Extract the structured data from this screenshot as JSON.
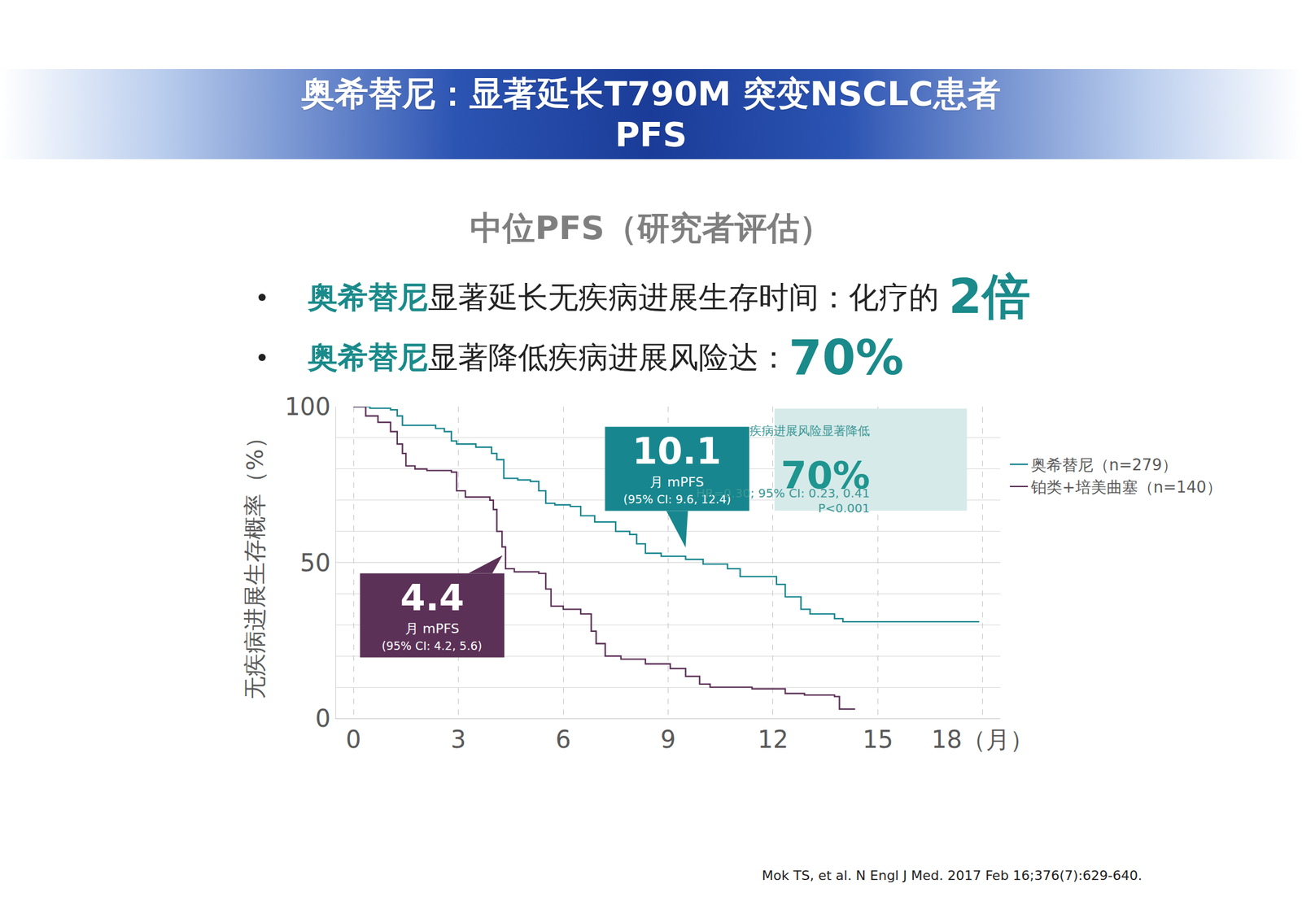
{
  "header": {
    "title": "奥希替尼：显著延长T790M 突变NSCLC患者PFS"
  },
  "subtitle": "中位PFS（研究者评估）",
  "bullets": [
    {
      "highlight": "奥希替尼",
      "text": "显著延长无疾病进展生存时间：化疗的 ",
      "emphasis": "2倍"
    },
    {
      "highlight": "奥希替尼",
      "text": "显著降低疾病进展风险达：",
      "emphasis": "70%"
    }
  ],
  "chart_data": {
    "type": "line",
    "line_style": "step",
    "y_label": "无疾病进展生存概率（%）",
    "xlim": [
      -0.5,
      18.5
    ],
    "xticks": [
      0,
      3,
      6,
      9,
      12,
      15,
      {
        "value": 18,
        "label": "18（月）"
      }
    ],
    "ylim": [
      0,
      100
    ],
    "yticks": [
      0,
      50,
      100
    ],
    "grid": true,
    "legend": "right",
    "series": [
      {
        "name": "奥希替尼（n=279）",
        "color": "#17868e",
        "x": [
          0,
          0.47,
          1.06,
          1.25,
          1.4,
          2.35,
          2.6,
          2.8,
          2.95,
          3.5,
          3.95,
          4.1,
          4.3,
          4.7,
          5.06,
          5.3,
          5.5,
          5.76,
          6.2,
          6.5,
          6.9,
          7.5,
          7.9,
          8.1,
          8.35,
          8.8,
          9.5,
          10.0,
          10.7,
          11.06,
          12.1,
          12.35,
          12.8,
          13.06,
          13.76,
          14.0,
          17.9
        ],
        "values": [
          100,
          99.5,
          99,
          97,
          94,
          93,
          92,
          89,
          88,
          87,
          85,
          83,
          77,
          76.5,
          76,
          73,
          69,
          68.5,
          68,
          65,
          63,
          60,
          59,
          56,
          53,
          52,
          51,
          49.5,
          48,
          45.5,
          43,
          39,
          35,
          33.5,
          32,
          31,
          31
        ],
        "median": 10.1,
        "median_label": "月 mPFS",
        "median_ci": "(95% CI: 9.6, 12.4)"
      },
      {
        "name": "铂类+培美曲塞（n=140）",
        "color": "#5c3157",
        "x": [
          0,
          0.35,
          0.7,
          1.06,
          1.25,
          1.4,
          1.5,
          1.76,
          2.1,
          2.8,
          2.95,
          3.2,
          3.9,
          4.0,
          4.1,
          4.25,
          4.35,
          4.6,
          5.3,
          5.5,
          5.65,
          6.0,
          6.5,
          6.8,
          6.94,
          7.2,
          7.65,
          8.35,
          9.06,
          9.5,
          9.9,
          10.2,
          11.4,
          12.35,
          12.9,
          13.76,
          13.9,
          14.35
        ],
        "values": [
          100,
          97,
          95,
          92,
          88,
          85,
          81,
          80,
          79.5,
          79,
          73,
          71,
          70,
          67,
          60,
          55,
          48,
          47,
          46.5,
          41.5,
          36,
          35,
          33.5,
          28,
          24,
          20,
          19,
          17.5,
          16,
          13.5,
          11,
          10,
          9.5,
          8,
          7.5,
          7,
          3,
          3
        ],
        "median": 4.4,
        "median_label": "月 mPFS",
        "median_ci": "(95% CI: 4.2, 5.6)"
      }
    ],
    "hr_box": {
      "title": "疾病进展风险显著降低",
      "value": "70%",
      "hr": "HR=0.30; 95% CI: 0.23, 0.41",
      "p": "P<0.001"
    }
  },
  "reference": "Mok TS, et al. N Engl J Med. 2017 Feb 16;376(7):629-640."
}
